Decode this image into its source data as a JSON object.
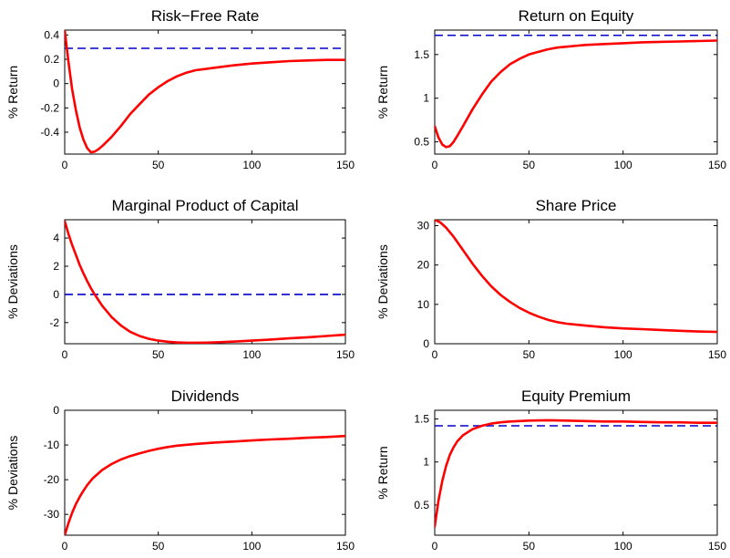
{
  "chart_data": [
    {
      "type": "line",
      "title": "Risk−Free Rate",
      "ylabel": "% Return",
      "xlim": [
        0,
        150
      ],
      "ylim": [
        -0.58,
        0.44
      ],
      "xticks": [
        0,
        50,
        100,
        150
      ],
      "yticks": [
        -0.4,
        -0.2,
        0,
        0.2,
        0.4
      ],
      "ytick_labels": [
        "-0.4",
        "-0.2",
        "0",
        "0.2",
        "0.4"
      ],
      "series": [
        {
          "color": "#ff0000",
          "x": [
            0,
            2,
            4,
            6,
            8,
            10,
            12,
            14,
            16,
            18,
            20,
            25,
            30,
            35,
            40,
            45,
            50,
            55,
            60,
            65,
            70,
            75,
            80,
            90,
            100,
            110,
            120,
            130,
            140,
            150
          ],
          "y": [
            0.44,
            0.18,
            -0.05,
            -0.22,
            -0.36,
            -0.46,
            -0.53,
            -0.565,
            -0.56,
            -0.54,
            -0.515,
            -0.44,
            -0.35,
            -0.25,
            -0.17,
            -0.09,
            -0.03,
            0.02,
            0.06,
            0.09,
            0.11,
            0.12,
            0.13,
            0.15,
            0.165,
            0.175,
            0.185,
            0.19,
            0.195,
            0.195
          ]
        }
      ],
      "hline": {
        "y": 0.29,
        "color": "#0000cc",
        "style": "dashed"
      }
    },
    {
      "type": "line",
      "title": "Return on Equity",
      "ylabel": "% Return",
      "xlim": [
        0,
        150
      ],
      "ylim": [
        0.36,
        1.78
      ],
      "xticks": [
        0,
        50,
        100,
        150
      ],
      "yticks": [
        0.5,
        1,
        1.5
      ],
      "ytick_labels": [
        "0.5",
        "1",
        "1.5"
      ],
      "series": [
        {
          "color": "#ff0000",
          "x": [
            0,
            2,
            4,
            6,
            8,
            10,
            12,
            15,
            20,
            25,
            30,
            35,
            40,
            45,
            50,
            55,
            60,
            65,
            70,
            80,
            90,
            100,
            110,
            120,
            130,
            140,
            150
          ],
          "y": [
            0.68,
            0.55,
            0.47,
            0.44,
            0.45,
            0.5,
            0.57,
            0.68,
            0.87,
            1.04,
            1.19,
            1.3,
            1.39,
            1.45,
            1.5,
            1.53,
            1.56,
            1.58,
            1.59,
            1.61,
            1.62,
            1.63,
            1.64,
            1.645,
            1.65,
            1.655,
            1.66
          ]
        }
      ],
      "hline": {
        "y": 1.72,
        "color": "#0000cc",
        "style": "dashed"
      }
    },
    {
      "type": "line",
      "title": "Marginal Product of Capital",
      "ylabel": "% Deviations",
      "xlim": [
        0,
        150
      ],
      "ylim": [
        -3.5,
        5.3
      ],
      "xticks": [
        0,
        50,
        100,
        150
      ],
      "yticks": [
        -2,
        0,
        2,
        4
      ],
      "ytick_labels": [
        "-2",
        "0",
        "2",
        "4"
      ],
      "series": [
        {
          "color": "#ff0000",
          "x": [
            0,
            2,
            4,
            6,
            8,
            10,
            12,
            14,
            16,
            18,
            20,
            25,
            30,
            35,
            40,
            45,
            50,
            55,
            60,
            65,
            70,
            75,
            80,
            90,
            100,
            110,
            120,
            130,
            140,
            150
          ],
          "y": [
            5.2,
            4.3,
            3.5,
            2.8,
            2.1,
            1.5,
            0.95,
            0.45,
            0.0,
            -0.4,
            -0.8,
            -1.6,
            -2.2,
            -2.65,
            -2.95,
            -3.15,
            -3.28,
            -3.36,
            -3.41,
            -3.43,
            -3.43,
            -3.42,
            -3.4,
            -3.35,
            -3.28,
            -3.2,
            -3.12,
            -3.04,
            -2.95,
            -2.86
          ]
        }
      ],
      "hline": {
        "y": 0,
        "color": "#0000cc",
        "style": "dashed"
      }
    },
    {
      "type": "line",
      "title": "Share Price",
      "ylabel": "% Deviations",
      "xlim": [
        0,
        150
      ],
      "ylim": [
        0,
        31.5
      ],
      "xticks": [
        0,
        50,
        100,
        150
      ],
      "yticks": [
        0,
        10,
        20,
        30
      ],
      "ytick_labels": [
        "0",
        "10",
        "20",
        "30"
      ],
      "series": [
        {
          "color": "#ff0000",
          "x": [
            0,
            3,
            6,
            10,
            15,
            20,
            25,
            30,
            35,
            40,
            45,
            50,
            55,
            60,
            65,
            70,
            80,
            90,
            100,
            110,
            120,
            130,
            140,
            150
          ],
          "y": [
            31.5,
            30.8,
            29.5,
            27.2,
            23.8,
            20.4,
            17.3,
            14.6,
            12.4,
            10.6,
            9.1,
            7.9,
            6.9,
            6.1,
            5.5,
            5.1,
            4.6,
            4.2,
            3.9,
            3.7,
            3.5,
            3.3,
            3.1,
            3.0
          ]
        }
      ]
    },
    {
      "type": "line",
      "title": "Dividends",
      "ylabel": "% Deviations",
      "xlim": [
        0,
        150
      ],
      "ylim": [
        -36,
        0
      ],
      "xticks": [
        0,
        50,
        100,
        150
      ],
      "yticks": [
        -30,
        -20,
        -10,
        0
      ],
      "ytick_labels": [
        "-30",
        "-20",
        "-10",
        "0"
      ],
      "series": [
        {
          "color": "#ff0000",
          "x": [
            0,
            2,
            4,
            6,
            8,
            10,
            12,
            15,
            20,
            25,
            30,
            35,
            40,
            45,
            50,
            55,
            60,
            70,
            80,
            90,
            100,
            110,
            120,
            130,
            140,
            150
          ],
          "y": [
            -36,
            -32.5,
            -29.5,
            -27,
            -25,
            -23.2,
            -21.6,
            -19.6,
            -17.2,
            -15.5,
            -14.2,
            -13.2,
            -12.4,
            -11.7,
            -11.1,
            -10.6,
            -10.2,
            -9.7,
            -9.3,
            -9.0,
            -8.7,
            -8.4,
            -8.2,
            -7.9,
            -7.7,
            -7.4
          ]
        }
      ]
    },
    {
      "type": "line",
      "title": "Equity Premium",
      "ylabel": "% Return",
      "xlim": [
        0,
        150
      ],
      "ylim": [
        0.15,
        1.6
      ],
      "xticks": [
        0,
        50,
        100,
        150
      ],
      "yticks": [
        0.5,
        1,
        1.5
      ],
      "ytick_labels": [
        "0.5",
        "1",
        "1.5"
      ],
      "series": [
        {
          "color": "#ff0000",
          "x": [
            0,
            2,
            4,
            6,
            8,
            10,
            12,
            15,
            20,
            25,
            30,
            35,
            40,
            45,
            50,
            60,
            70,
            80,
            90,
            100,
            110,
            120,
            130,
            140,
            150
          ],
          "y": [
            0.25,
            0.55,
            0.78,
            0.95,
            1.08,
            1.17,
            1.24,
            1.31,
            1.38,
            1.42,
            1.445,
            1.46,
            1.47,
            1.475,
            1.48,
            1.485,
            1.48,
            1.475,
            1.47,
            1.47,
            1.465,
            1.46,
            1.46,
            1.455,
            1.455
          ]
        }
      ],
      "hline": {
        "y": 1.42,
        "color": "#0000cc",
        "style": "dashed"
      }
    }
  ]
}
